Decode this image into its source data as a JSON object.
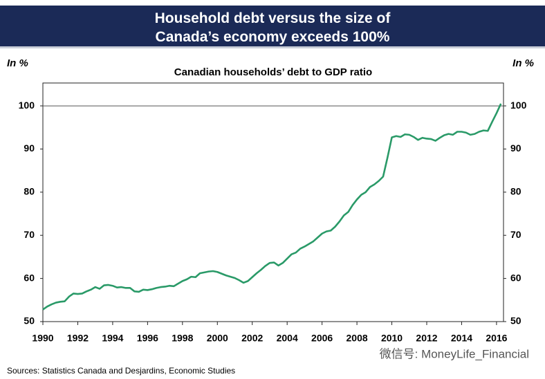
{
  "chart_data": {
    "type": "line",
    "title": "Household debt versus the size of Canada’s economy exceeds 100%",
    "subtitle": "Canadian households’ debt to GDP ratio",
    "y_label": "In %",
    "y2_label": "In %",
    "source": "Sources: Statistics Canada and Desjardins, Economic Studies",
    "watermark": "微信号: MoneyLife_Financial",
    "x": [
      1990,
      1990.25,
      1990.5,
      1990.75,
      1991,
      1991.25,
      1991.5,
      1991.75,
      1992,
      1992.25,
      1992.5,
      1992.75,
      1993,
      1993.25,
      1993.5,
      1993.75,
      1994,
      1994.25,
      1994.5,
      1994.75,
      1995,
      1995.25,
      1995.5,
      1995.75,
      1996,
      1996.25,
      1996.5,
      1996.75,
      1997,
      1997.25,
      1997.5,
      1997.75,
      1998,
      1998.25,
      1998.5,
      1998.75,
      1999,
      1999.25,
      1999.5,
      1999.75,
      2000,
      2000.25,
      2000.5,
      2000.75,
      2001,
      2001.25,
      2001.5,
      2001.75,
      2002,
      2002.25,
      2002.5,
      2002.75,
      2003,
      2003.25,
      2003.5,
      2003.75,
      2004,
      2004.25,
      2004.5,
      2004.75,
      2005,
      2005.25,
      2005.5,
      2005.75,
      2006,
      2006.25,
      2006.5,
      2006.75,
      2007,
      2007.25,
      2007.5,
      2007.75,
      2008,
      2008.25,
      2008.5,
      2008.75,
      2009,
      2009.25,
      2009.5,
      2009.75,
      2010,
      2010.25,
      2010.5,
      2010.75,
      2011,
      2011.25,
      2011.5,
      2011.75,
      2012,
      2012.25,
      2012.5,
      2012.75,
      2013,
      2013.25,
      2013.5,
      2013.75,
      2014,
      2014.25,
      2014.5,
      2014.75,
      2015,
      2015.25,
      2015.5,
      2015.75,
      2016,
      2016.25
    ],
    "series": [
      {
        "color": "#2a9a68",
        "values": [
          52.8,
          53.5,
          54.0,
          54.4,
          54.6,
          54.7,
          55.8,
          56.5,
          56.4,
          56.5,
          57.0,
          57.4,
          58.0,
          57.6,
          58.4,
          58.5,
          58.3,
          57.9,
          58.0,
          57.8,
          57.8,
          57.0,
          56.9,
          57.4,
          57.3,
          57.5,
          57.8,
          58.0,
          58.1,
          58.3,
          58.2,
          58.8,
          59.4,
          59.8,
          60.4,
          60.3,
          61.2,
          61.4,
          61.6,
          61.7,
          61.5,
          61.1,
          60.7,
          60.4,
          60.1,
          59.6,
          59.0,
          59.4,
          60.3,
          61.2,
          62.0,
          62.9,
          63.6,
          63.7,
          63.0,
          63.6,
          64.6,
          65.6,
          66.0,
          66.9,
          67.4,
          68.0,
          68.6,
          69.5,
          70.4,
          70.9,
          71.1,
          72.0,
          73.2,
          74.6,
          75.4,
          77.0,
          78.3,
          79.4,
          80.0,
          81.2,
          81.8,
          82.6,
          83.6,
          88.0,
          92.7,
          93.0,
          92.8,
          93.4,
          93.3,
          92.8,
          92.1,
          92.6,
          92.4,
          92.3,
          91.9,
          92.6,
          93.2,
          93.5,
          93.3,
          94.0,
          94.0,
          93.8,
          93.3,
          93.5,
          94.0,
          94.3,
          94.2,
          96.3,
          98.3,
          100.5
        ]
      }
    ],
    "xlim": [
      1990,
      2016.4
    ],
    "xticks": [
      1990,
      1992,
      1994,
      1996,
      1998,
      2000,
      2002,
      2004,
      2006,
      2008,
      2010,
      2012,
      2014,
      2016
    ],
    "ylim": [
      50,
      105.3
    ],
    "yticks": [
      50,
      60,
      70,
      80,
      90,
      100
    ],
    "reference_line": 100
  }
}
